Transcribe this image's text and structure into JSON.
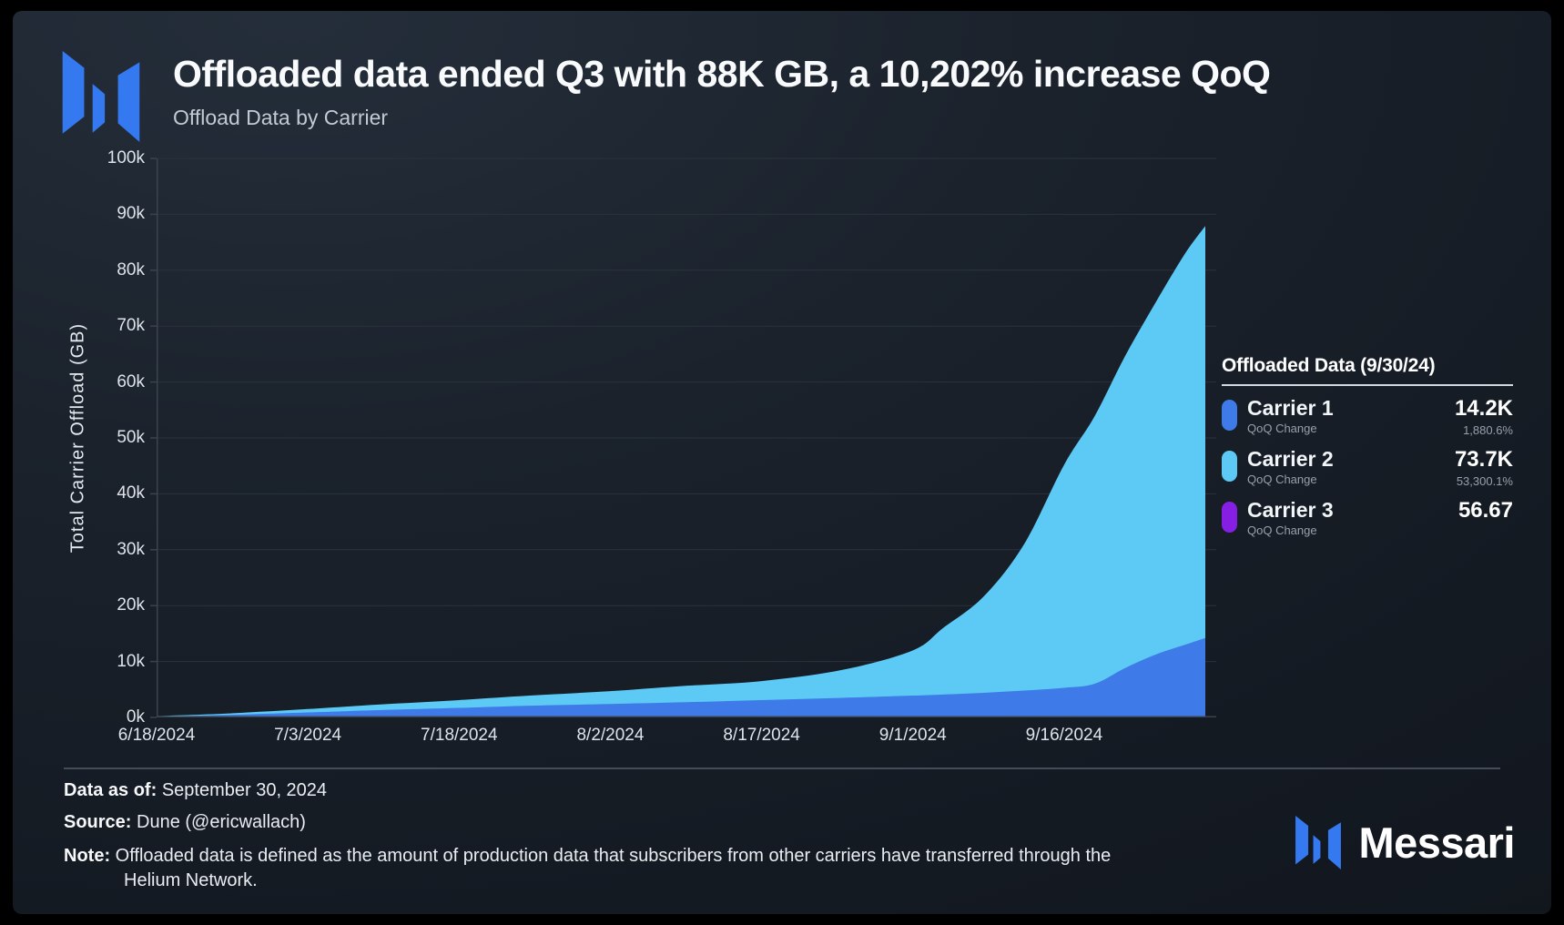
{
  "header": {
    "title": "Offloaded data ended Q3 with 88K GB, a 10,202% increase QoQ",
    "subtitle": "Offload Data by Carrier"
  },
  "colors": {
    "carrier1": "#3e7be8",
    "carrier2": "#5ccaf5",
    "carrier3": "#861fe3",
    "logo_blue": "#3579f0",
    "grid": "#2a323c",
    "axis_line": "#3a434e",
    "tick_text": "#dde3e9"
  },
  "axes": {
    "y_title": "Total Carrier Offload (GB)",
    "y_ticks": [
      "0k",
      "10k",
      "20k",
      "30k",
      "40k",
      "50k",
      "60k",
      "70k",
      "80k",
      "90k",
      "100k"
    ],
    "x_ticks": [
      {
        "day": 0,
        "label": "6/18/2024"
      },
      {
        "day": 15,
        "label": "7/3/2024"
      },
      {
        "day": 30,
        "label": "7/18/2024"
      },
      {
        "day": 45,
        "label": "8/2/2024"
      },
      {
        "day": 60,
        "label": "8/17/2024"
      },
      {
        "day": 75,
        "label": "9/1/2024"
      },
      {
        "day": 90,
        "label": "9/16/2024"
      }
    ]
  },
  "chart_data": {
    "type": "area",
    "stacked": true,
    "title": "Offload Data by Carrier",
    "ylabel": "Total Carrier Offload (GB)",
    "ylim_k": [
      0,
      100
    ],
    "grid": true,
    "x_start_date": "6/18/2024",
    "x_end_date": "9/30/2024",
    "x_total_days": 104,
    "days": [
      0,
      7,
      15,
      22,
      30,
      37,
      45,
      52,
      60,
      68,
      75,
      78,
      82,
      86,
      90,
      93,
      96,
      99,
      102,
      104
    ],
    "series": [
      {
        "name": "Carrier 1",
        "color": "#3e7be8",
        "values_k": [
          0.15,
          0.45,
          0.9,
          1.3,
          1.7,
          2.1,
          2.4,
          2.7,
          3.1,
          3.5,
          3.9,
          4.1,
          4.4,
          4.8,
          5.3,
          6.0,
          8.8,
          11.2,
          13.0,
          14.2
        ],
        "final_value": "14.2K",
        "qoq_change": "1,880.6%"
      },
      {
        "name": "Carrier 2",
        "color": "#5ccaf5",
        "values_k": [
          0.1,
          0.25,
          0.6,
          1.0,
          1.4,
          1.8,
          2.3,
          2.9,
          3.4,
          5.0,
          8.1,
          11.9,
          17.2,
          26.1,
          39.9,
          47.8,
          55.7,
          62.8,
          70.0,
          73.7
        ],
        "final_value": "73.7K",
        "qoq_change": "53,300.1%"
      },
      {
        "name": "Carrier 3",
        "color": "#861fe3",
        "values_k": [
          6e-05,
          6e-05,
          6e-05,
          6e-05,
          6e-05,
          6e-05,
          6e-05,
          6e-05,
          6e-05,
          6e-05,
          6e-05,
          6e-05,
          6e-05,
          6e-05,
          6e-05,
          6e-05,
          6e-05,
          6e-05,
          6e-05,
          6e-05
        ],
        "final_value": "56.67",
        "qoq_change": ""
      }
    ],
    "final_total_label": "88K GB",
    "legend_position": "right"
  },
  "legend": {
    "title": "Offloaded Data (9/30/24)",
    "items": [
      {
        "name": "Carrier 1",
        "sub": "QoQ Change",
        "value": "14.2K",
        "change": "1,880.6%",
        "color": "#3e7be8"
      },
      {
        "name": "Carrier 2",
        "sub": "QoQ Change",
        "value": "73.7K",
        "change": "53,300.1%",
        "color": "#5ccaf5"
      },
      {
        "name": "Carrier 3",
        "sub": "QoQ Change",
        "value": "56.67",
        "change": "",
        "color": "#861fe3"
      }
    ]
  },
  "footer": {
    "data_as_of_label": "Data as of:",
    "data_as_of": "September 30, 2024",
    "source_label": "Source:",
    "source": "Dune (@ericwallach)",
    "note_label": "Note:",
    "note": "Offloaded data is defined as the amount of production data that subscribers from other carriers have transferred through the\nHelium Network.",
    "brand": "Messari"
  }
}
